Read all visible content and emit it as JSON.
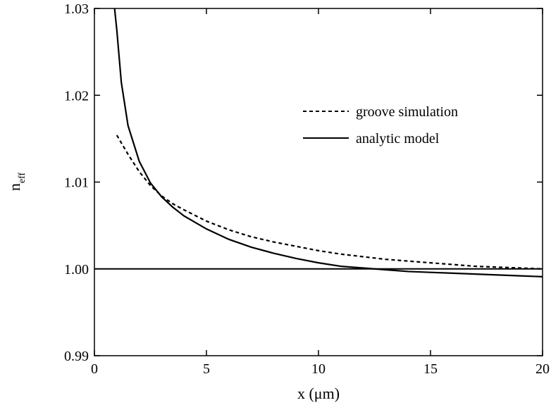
{
  "chart_data": {
    "type": "line",
    "title": "",
    "xlabel": "x (μm)",
    "ylabel_main": "n",
    "ylabel_sub": "eff",
    "xlim": [
      0,
      20
    ],
    "ylim": [
      0.99,
      1.03
    ],
    "x_ticks": [
      0,
      5,
      10,
      15,
      20
    ],
    "x_tick_labels": [
      "0",
      "5",
      "10",
      "15",
      "20"
    ],
    "y_ticks": [
      0.99,
      1.0,
      1.01,
      1.02,
      1.03
    ],
    "y_tick_labels": [
      "0.99",
      "1.00",
      "1.01",
      "1.02",
      "1.03"
    ],
    "grid": false,
    "legend_position": "top-right",
    "reference_line": {
      "y": 1.0
    },
    "series": [
      {
        "name": "groove simulation",
        "style": "dashed",
        "color": "#000000",
        "x": [
          1.0,
          1.5,
          2.0,
          2.5,
          3.0,
          3.5,
          4.0,
          5.0,
          6.0,
          7.0,
          8.0,
          9.0,
          10.0,
          11.0,
          12.0,
          13.0,
          14.0,
          15.0,
          16.0,
          17.0,
          18.0,
          19.0,
          20.0
        ],
        "y": [
          1.0154,
          1.0132,
          1.0112,
          1.0096,
          1.0084,
          1.0075,
          1.0068,
          1.0055,
          1.0045,
          1.0037,
          1.0031,
          1.0026,
          1.0021,
          1.0017,
          1.0014,
          1.0011,
          1.0009,
          1.0007,
          1.0005,
          1.0003,
          1.0002,
          1.0001,
          1.0
        ]
      },
      {
        "name": "analytic model",
        "style": "solid",
        "color": "#000000",
        "x": [
          0.9,
          1.0,
          1.2,
          1.5,
          2.0,
          2.5,
          3.0,
          3.5,
          4.0,
          5.0,
          6.0,
          7.0,
          8.0,
          9.0,
          10.0,
          11.0,
          12.0,
          13.0,
          14.0,
          15.0,
          16.0,
          17.0,
          18.0,
          19.0,
          20.0
        ],
        "y": [
          1.03,
          1.0275,
          1.0215,
          1.0165,
          1.0124,
          1.0099,
          1.0083,
          1.0071,
          1.0061,
          1.0046,
          1.0034,
          1.0025,
          1.0018,
          1.0012,
          1.0007,
          1.0003,
          1.0001,
          0.9999,
          0.9997,
          0.9996,
          0.9995,
          0.9994,
          0.9993,
          0.9992,
          0.9991
        ]
      }
    ]
  }
}
